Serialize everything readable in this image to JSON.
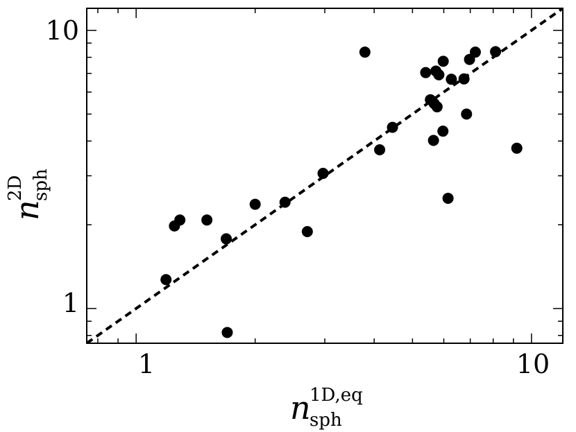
{
  "chart_data": {
    "type": "scatter",
    "x_scale": "log",
    "y_scale": "log",
    "xlim": [
      0.75,
      12
    ],
    "ylim": [
      0.75,
      12
    ],
    "x_ticks": [
      1,
      10
    ],
    "y_ticks": [
      1,
      10
    ],
    "x_tick_labels": [
      "1",
      "10"
    ],
    "y_tick_labels": [
      "1",
      "10"
    ],
    "xlabel": {
      "symbol": "n",
      "subscript": "sph",
      "superscript": "1D,eq"
    },
    "ylabel": {
      "symbol": "n",
      "subscript": "sph",
      "superscript": "2D"
    },
    "grid": false,
    "legend": "none",
    "reference_line": {
      "style": "dashed",
      "relation": "y = x"
    },
    "marker_color": "#000000",
    "points": [
      {
        "x": 1.19,
        "y": 1.27
      },
      {
        "x": 1.25,
        "y": 1.98
      },
      {
        "x": 1.29,
        "y": 2.08
      },
      {
        "x": 1.51,
        "y": 2.08
      },
      {
        "x": 1.69,
        "y": 1.78
      },
      {
        "x": 1.7,
        "y": 0.82
      },
      {
        "x": 2.0,
        "y": 2.37
      },
      {
        "x": 2.38,
        "y": 2.41
      },
      {
        "x": 2.71,
        "y": 1.89
      },
      {
        "x": 2.97,
        "y": 3.06
      },
      {
        "x": 3.79,
        "y": 8.35
      },
      {
        "x": 4.13,
        "y": 3.72
      },
      {
        "x": 4.45,
        "y": 4.48
      },
      {
        "x": 5.4,
        "y": 7.05
      },
      {
        "x": 5.55,
        "y": 5.63
      },
      {
        "x": 5.65,
        "y": 4.02
      },
      {
        "x": 5.67,
        "y": 5.46
      },
      {
        "x": 5.73,
        "y": 7.14
      },
      {
        "x": 5.77,
        "y": 5.31
      },
      {
        "x": 5.83,
        "y": 6.92
      },
      {
        "x": 5.97,
        "y": 4.34
      },
      {
        "x": 5.98,
        "y": 7.74
      },
      {
        "x": 6.15,
        "y": 2.49
      },
      {
        "x": 6.27,
        "y": 6.67
      },
      {
        "x": 6.75,
        "y": 6.69
      },
      {
        "x": 6.85,
        "y": 5.0
      },
      {
        "x": 6.97,
        "y": 7.86
      },
      {
        "x": 7.21,
        "y": 8.35
      },
      {
        "x": 8.11,
        "y": 8.38
      },
      {
        "x": 9.18,
        "y": 3.77
      }
    ]
  }
}
